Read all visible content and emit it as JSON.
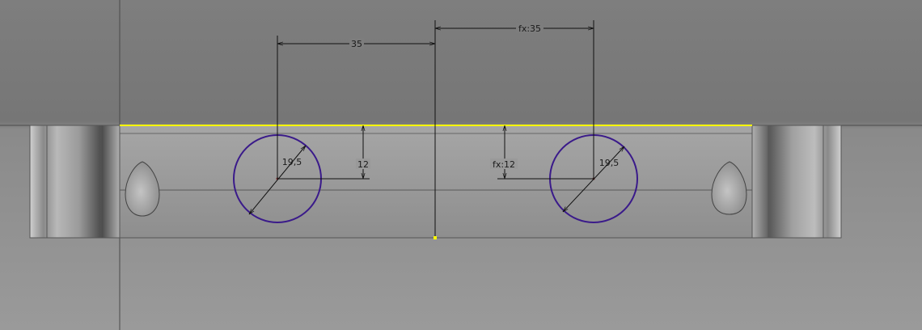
{
  "dimensions": {
    "left_horizontal": "35",
    "right_horizontal": "fx:35",
    "left_vertical": "12",
    "right_vertical": "fx:12",
    "left_diameter": "19,5",
    "right_diameter": "19,5"
  },
  "colors": {
    "background": "#7a7a7a",
    "part_face": "#9b9b9b",
    "circle": "#3a1a8a",
    "highlight_edge": "#ffff00",
    "dimension_line": "#111111"
  }
}
